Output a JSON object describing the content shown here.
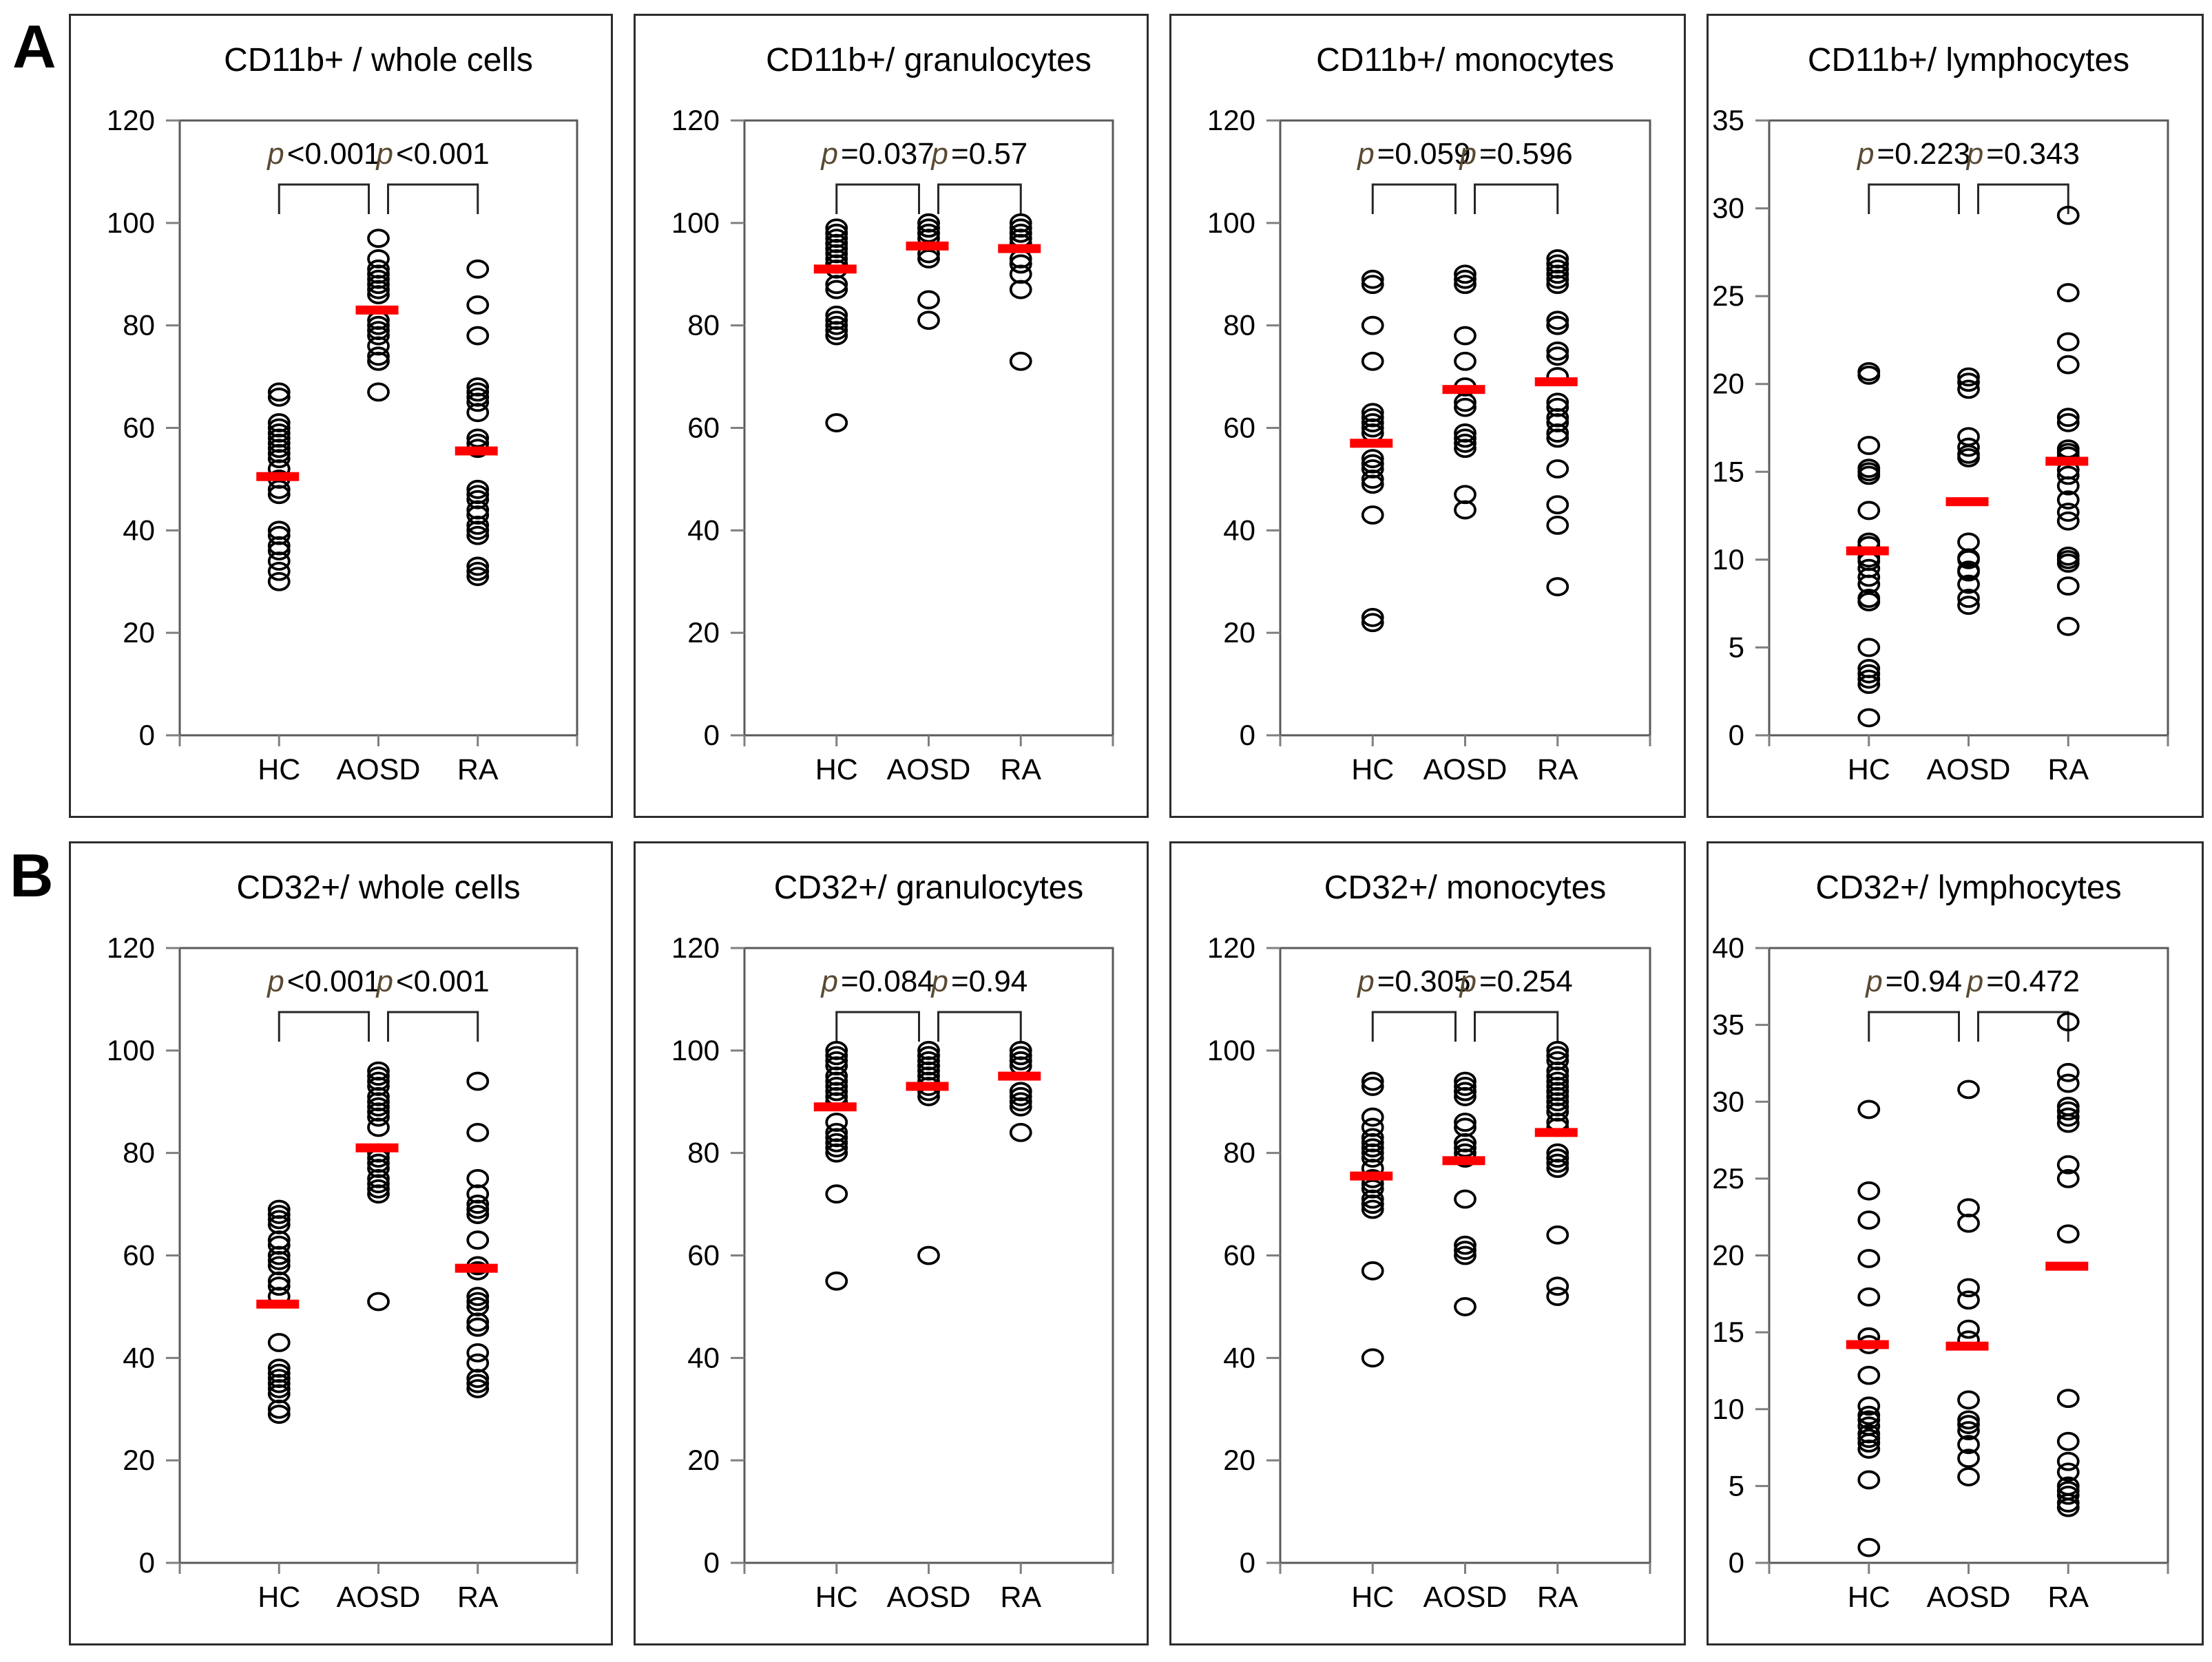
{
  "figure": {
    "section_labels": [
      "A",
      "B"
    ]
  },
  "groups": [
    "HC",
    "AOSD",
    "RA"
  ],
  "colors": {
    "median_bar": "#ff0000",
    "circle_stroke": "#000000",
    "frame": "#595959",
    "tick": "#7f7f7f",
    "text": "#000000",
    "p_symbol": "#5a4a32",
    "bracket": "#262626",
    "panel_border": "#2d2d2d"
  },
  "chart_data": [
    {
      "type": "scatter",
      "row": 0,
      "col": 0,
      "title": "CD11b+ / whole cells",
      "ylim": [
        0,
        120
      ],
      "ystep": 20,
      "yticks": [
        "0",
        "20",
        "40",
        "60",
        "80",
        "100",
        "120"
      ],
      "categories": [
        "HC",
        "AOSD",
        "RA"
      ],
      "p_labels": [
        {
          "sym": "p",
          "rest": "<0.001"
        },
        {
          "sym": "p",
          "rest": "<0.001"
        }
      ],
      "series": [
        {
          "name": "HC",
          "median": 50.5,
          "values": [
            67,
            66,
            61,
            60,
            59,
            58,
            57,
            56,
            55,
            54,
            52,
            50,
            48,
            47,
            40,
            39,
            37,
            36,
            34,
            32,
            30
          ]
        },
        {
          "name": "AOSD",
          "median": 83,
          "values": [
            97,
            93,
            91,
            90,
            89,
            88,
            87,
            86,
            81,
            80,
            79,
            78,
            76,
            74,
            73,
            67
          ]
        },
        {
          "name": "RA",
          "median": 55.5,
          "values": [
            91,
            84,
            78,
            68,
            67,
            66,
            65,
            63,
            58,
            57,
            56,
            48,
            47,
            46,
            44,
            43,
            41,
            40,
            39,
            33,
            32,
            31
          ]
        }
      ]
    },
    {
      "type": "scatter",
      "row": 0,
      "col": 1,
      "title": "CD11b+/ granulocytes",
      "ylim": [
        0,
        120
      ],
      "ystep": 20,
      "yticks": [
        "0",
        "20",
        "40",
        "60",
        "80",
        "100",
        "120"
      ],
      "categories": [
        "HC",
        "AOSD",
        "RA"
      ],
      "p_labels": [
        {
          "sym": "p",
          "rest": "=0.037"
        },
        {
          "sym": "p",
          "rest": "=0.57"
        }
      ],
      "series": [
        {
          "name": "HC",
          "median": 91,
          "values": [
            99,
            98,
            98,
            97,
            96,
            96,
            95,
            95,
            94,
            93,
            92,
            92,
            91,
            88,
            87,
            82,
            81,
            80,
            79,
            78,
            61
          ]
        },
        {
          "name": "AOSD",
          "median": 95.5,
          "values": [
            100,
            100,
            99,
            99,
            98,
            98,
            97,
            94,
            93,
            85,
            81
          ]
        },
        {
          "name": "RA",
          "median": 95,
          "values": [
            100,
            99,
            99,
            98,
            98,
            97,
            97,
            96,
            93,
            92,
            92,
            90,
            87,
            73
          ]
        }
      ]
    },
    {
      "type": "scatter",
      "row": 0,
      "col": 2,
      "title": "CD11b+/ monocytes",
      "ylim": [
        0,
        120
      ],
      "ystep": 20,
      "yticks": [
        "0",
        "20",
        "40",
        "60",
        "80",
        "100",
        "120"
      ],
      "categories": [
        "HC",
        "AOSD",
        "RA"
      ],
      "p_labels": [
        {
          "sym": "p",
          "rest": "=0.059"
        },
        {
          "sym": "p",
          "rest": "=0.596"
        }
      ],
      "series": [
        {
          "name": "HC",
          "median": 57,
          "values": [
            89,
            88,
            80,
            73,
            63,
            62,
            61,
            60,
            59,
            54,
            53,
            53,
            52,
            50,
            49,
            43,
            23,
            22
          ]
        },
        {
          "name": "AOSD",
          "median": 67.5,
          "values": [
            90,
            89,
            88,
            78,
            73,
            68,
            65,
            64,
            59,
            58,
            57,
            56,
            47,
            44
          ]
        },
        {
          "name": "RA",
          "median": 69,
          "values": [
            93,
            92,
            91,
            90,
            89,
            88,
            81,
            80,
            80,
            75,
            74,
            70,
            65,
            64,
            62,
            61,
            59,
            58,
            52,
            45,
            41,
            29
          ]
        }
      ]
    },
    {
      "type": "scatter",
      "row": 0,
      "col": 3,
      "title": "CD11b+/ lymphocytes",
      "ylim": [
        0,
        35
      ],
      "ystep": 5,
      "yticks": [
        "0",
        "5",
        "10",
        "15",
        "20",
        "25",
        "30",
        "35"
      ],
      "categories": [
        "HC",
        "AOSD",
        "RA"
      ],
      "p_labels": [
        {
          "sym": "p",
          "rest": "=0.223"
        },
        {
          "sym": "p",
          "rest": "=0.343"
        }
      ],
      "series": [
        {
          "name": "HC",
          "median": 10.5,
          "values": [
            20.7,
            20.5,
            16.5,
            15.2,
            15,
            14.8,
            12.8,
            11,
            10.8,
            10.1,
            9.9,
            9.5,
            9,
            8.6,
            7.8,
            7.6,
            5,
            3.8,
            3.5,
            3.2,
            2.9,
            1
          ]
        },
        {
          "name": "AOSD",
          "median": 13.3,
          "values": [
            20.4,
            20.1,
            19.7,
            17,
            16.4,
            16,
            15.8,
            11,
            10.1,
            10,
            9.4,
            9.3,
            8.6,
            7.8,
            7.4
          ]
        },
        {
          "name": "RA",
          "median": 15.6,
          "values": [
            29.6,
            25.2,
            22.4,
            21.1,
            18.1,
            17.8,
            16.3,
            16.1,
            15.9,
            15.1,
            14.8,
            14.2,
            13.4,
            12.7,
            12.2,
            10.2,
            10,
            9.8,
            8.5,
            6.2
          ]
        }
      ]
    },
    {
      "type": "scatter",
      "row": 1,
      "col": 0,
      "title": "CD32+/ whole cells",
      "ylim": [
        0,
        120
      ],
      "ystep": 20,
      "yticks": [
        "0",
        "20",
        "40",
        "60",
        "80",
        "100",
        "120"
      ],
      "categories": [
        "HC",
        "AOSD",
        "RA"
      ],
      "p_labels": [
        {
          "sym": "p",
          "rest": "<0.001"
        },
        {
          "sym": "p",
          "rest": "<0.001"
        }
      ],
      "series": [
        {
          "name": "HC",
          "median": 50.5,
          "values": [
            69,
            68,
            67,
            66,
            63,
            62,
            60,
            59,
            58,
            55,
            54,
            52,
            43,
            38,
            37,
            36,
            35,
            34,
            33,
            30,
            29
          ]
        },
        {
          "name": "AOSD",
          "median": 81,
          "values": [
            96,
            95,
            94,
            93,
            91,
            90,
            89,
            88,
            87,
            85,
            80,
            79,
            78,
            77,
            75,
            74,
            73,
            72,
            51
          ]
        },
        {
          "name": "RA",
          "median": 57.5,
          "values": [
            94,
            84,
            75,
            72,
            70,
            69,
            68,
            68,
            63,
            58,
            57,
            52,
            51,
            50,
            47,
            46,
            46,
            41,
            39,
            36,
            35,
            34
          ]
        }
      ]
    },
    {
      "type": "scatter",
      "row": 1,
      "col": 1,
      "title": "CD32+/ granulocytes",
      "ylim": [
        0,
        120
      ],
      "ystep": 20,
      "yticks": [
        "0",
        "20",
        "40",
        "60",
        "80",
        "100",
        "120"
      ],
      "categories": [
        "HC",
        "AOSD",
        "RA"
      ],
      "p_labels": [
        {
          "sym": "p",
          "rest": "=0.084"
        },
        {
          "sym": "p",
          "rest": "=0.94"
        }
      ],
      "series": [
        {
          "name": "HC",
          "median": 89,
          "values": [
            100,
            99,
            98,
            97,
            95,
            94,
            93,
            92,
            91,
            90,
            86,
            84,
            83,
            82,
            81,
            80,
            72,
            55
          ]
        },
        {
          "name": "AOSD",
          "median": 93,
          "values": [
            100,
            99,
            99,
            98,
            97,
            97,
            96,
            95,
            94,
            93,
            92,
            91,
            60
          ]
        },
        {
          "name": "RA",
          "median": 95,
          "values": [
            100,
            99,
            99,
            98,
            98,
            97,
            92,
            92,
            91,
            90,
            89,
            84
          ]
        }
      ]
    },
    {
      "type": "scatter",
      "row": 1,
      "col": 2,
      "title": "CD32+/ monocytes",
      "ylim": [
        0,
        120
      ],
      "ystep": 20,
      "yticks": [
        "0",
        "20",
        "40",
        "60",
        "80",
        "100",
        "120"
      ],
      "categories": [
        "HC",
        "AOSD",
        "RA"
      ],
      "p_labels": [
        {
          "sym": "p",
          "rest": "=0.305"
        },
        {
          "sym": "p",
          "rest": "=0.254"
        }
      ],
      "series": [
        {
          "name": "HC",
          "median": 75.5,
          "values": [
            94,
            93,
            87,
            85,
            83,
            82,
            81,
            81,
            80,
            79,
            77,
            75,
            74,
            73,
            71,
            70,
            70,
            69,
            57,
            40
          ]
        },
        {
          "name": "AOSD",
          "median": 78.5,
          "values": [
            94,
            93,
            92,
            92,
            91,
            86,
            85,
            82,
            82,
            81,
            80,
            79,
            71,
            62,
            61,
            60,
            50
          ]
        },
        {
          "name": "RA",
          "median": 84,
          "values": [
            100,
            99,
            98,
            96,
            95,
            94,
            93,
            92,
            92,
            91,
            90,
            89,
            88,
            86,
            85,
            80,
            79,
            79,
            78,
            77,
            64,
            54,
            52
          ]
        }
      ]
    },
    {
      "type": "scatter",
      "row": 1,
      "col": 3,
      "title": "CD32+/ lymphocytes",
      "ylim": [
        0,
        40
      ],
      "ystep": 5,
      "yticks": [
        "0",
        "5",
        "10",
        "15",
        "20",
        "25",
        "30",
        "35",
        "40"
      ],
      "categories": [
        "HC",
        "AOSD",
        "RA"
      ],
      "p_labels": [
        {
          "sym": "p",
          "rest": "=0.94"
        },
        {
          "sym": "p",
          "rest": "=0.472"
        }
      ],
      "series": [
        {
          "name": "HC",
          "median": 14.2,
          "values": [
            29.5,
            24.2,
            22.3,
            19.8,
            17.3,
            14.7,
            14.2,
            12.2,
            10.2,
            9.6,
            9.3,
            8.9,
            8.4,
            8.1,
            7.8,
            7.4,
            5.4,
            1
          ]
        },
        {
          "name": "AOSD",
          "median": 14.1,
          "values": [
            30.8,
            23.1,
            22.1,
            17.9,
            17.1,
            15.2,
            14.5,
            10.6,
            9.3,
            9,
            8.6,
            7.7,
            6.8,
            5.6
          ]
        },
        {
          "name": "RA",
          "median": 19.3,
          "values": [
            35.2,
            31.9,
            31.2,
            29.7,
            29.4,
            29,
            28.6,
            25.9,
            25,
            21.4,
            10.7,
            7.9,
            6.6,
            5.9,
            5,
            4.7,
            4.4,
            3.9,
            3.6
          ]
        }
      ]
    }
  ]
}
